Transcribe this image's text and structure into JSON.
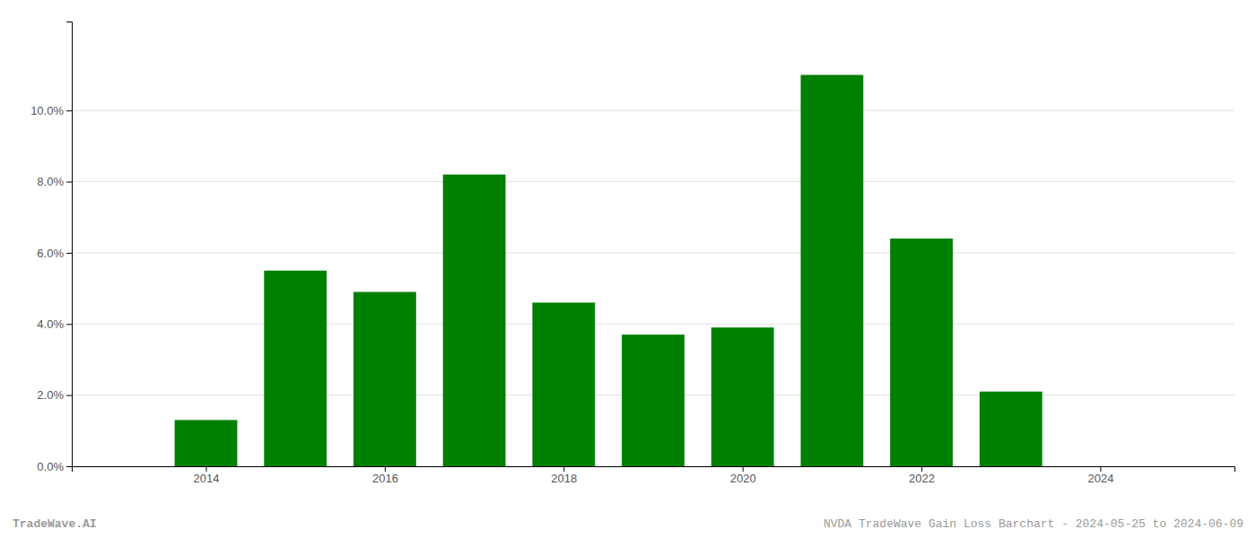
{
  "chart_data": {
    "type": "bar",
    "x": [
      2014,
      2015,
      2016,
      2017,
      2018,
      2019,
      2020,
      2021,
      2022,
      2023
    ],
    "values": [
      0.013,
      0.055,
      0.049,
      0.082,
      0.046,
      0.037,
      0.039,
      0.11,
      0.064,
      0.021
    ],
    "color": "#008000",
    "xlim": [
      2012.5,
      2025.5
    ],
    "xticks": [
      2014,
      2016,
      2018,
      2020,
      2022,
      2024
    ],
    "ylim": [
      0,
      0.125
    ],
    "yticks": [
      {
        "value": 0.0,
        "label": "0.0%"
      },
      {
        "value": 0.02,
        "label": "2.0%"
      },
      {
        "value": 0.04,
        "label": "4.0%"
      },
      {
        "value": 0.06,
        "label": "6.0%"
      },
      {
        "value": 0.08,
        "label": "8.0%"
      },
      {
        "value": 0.1,
        "label": "10.0%"
      }
    ],
    "grid": true,
    "annotations": [
      "TradeWave.AI",
      "NVDA TradeWave Gain Loss Barchart - 2024-05-25 to 2024-06-09"
    ]
  }
}
